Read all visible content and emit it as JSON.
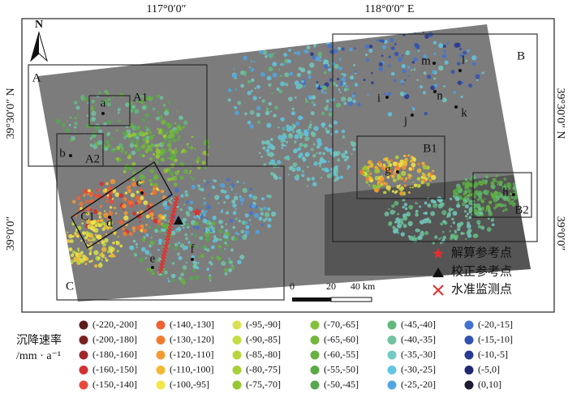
{
  "axes": {
    "top": [
      "117°0′0″",
      "118°0′0″ E"
    ],
    "left": [
      "39°30′0″ N",
      "39°0′0″"
    ],
    "right": [
      "39°30′0″ N",
      "39°0′0″"
    ]
  },
  "north": "N",
  "regions": [
    {
      "label": "A"
    },
    {
      "label": "A1"
    },
    {
      "label": "A2"
    },
    {
      "label": "B"
    },
    {
      "label": "B1"
    },
    {
      "label": "B2"
    },
    {
      "label": "C"
    },
    {
      "label": "C1"
    }
  ],
  "points": [
    {
      "label": "a"
    },
    {
      "label": "b"
    },
    {
      "label": "c"
    },
    {
      "label": "d"
    },
    {
      "label": "e"
    },
    {
      "label": "f"
    },
    {
      "label": "g"
    },
    {
      "label": "h"
    },
    {
      "label": "i"
    },
    {
      "label": "j"
    },
    {
      "label": "k"
    },
    {
      "label": "l"
    },
    {
      "label": "m"
    },
    {
      "label": "n"
    }
  ],
  "symbols": [
    {
      "label": "解算参考点"
    },
    {
      "label": "校正参考点"
    },
    {
      "label": "水准监测点"
    }
  ],
  "scale_bar": [
    "0",
    "20",
    "40 km"
  ],
  "legend": {
    "title": "沉降速率",
    "unit": "/mm · a⁻¹",
    "items": [
      {
        "label": "(-220,-200]",
        "color": "#5a1c1c"
      },
      {
        "label": "(-200,-180]",
        "color": "#7a2222"
      },
      {
        "label": "(-180,-160]",
        "color": "#a02828"
      },
      {
        "label": "(-160,-150]",
        "color": "#d03232"
      },
      {
        "label": "(-150,-140]",
        "color": "#e84a3a"
      },
      {
        "label": "(-140,-130]",
        "color": "#f06232"
      },
      {
        "label": "(-130,-120]",
        "color": "#f07c32"
      },
      {
        "label": "(-120,-110]",
        "color": "#f59a32"
      },
      {
        "label": "(-110,-100]",
        "color": "#f5b832"
      },
      {
        "label": "(-100,-95]",
        "color": "#f2e648"
      },
      {
        "label": "(-95,-90]",
        "color": "#d8e252"
      },
      {
        "label": "(-90,-85]",
        "color": "#c6dc44"
      },
      {
        "label": "(-85,-80]",
        "color": "#b6d63e"
      },
      {
        "label": "(-80,-75]",
        "color": "#a6d036"
      },
      {
        "label": "(-75,-70]",
        "color": "#96c834"
      },
      {
        "label": "(-70,-65]",
        "color": "#84c03a"
      },
      {
        "label": "(-65,-60]",
        "color": "#74b83e"
      },
      {
        "label": "(-60,-55]",
        "color": "#66b240"
      },
      {
        "label": "(-55,-50]",
        "color": "#5aaa44"
      },
      {
        "label": "(-50,-45]",
        "color": "#56a84e"
      },
      {
        "label": "(-45,-40]",
        "color": "#62b87c"
      },
      {
        "label": "(-40,-35]",
        "color": "#70c2a2"
      },
      {
        "label": "(-35,-30]",
        "color": "#72cac2"
      },
      {
        "label": "(-30,-25]",
        "color": "#62c6e2"
      },
      {
        "label": "(-25,-20]",
        "color": "#50a6e0"
      },
      {
        "label": "(-20,-15]",
        "color": "#4272d0"
      },
      {
        "label": "(-15,-10]",
        "color": "#3252b2"
      },
      {
        "label": "(-10,-5]",
        "color": "#283a92"
      },
      {
        "label": "(-5,0]",
        "color": "#202872"
      },
      {
        "label": "(0,10]",
        "color": "#1e1a32"
      }
    ]
  }
}
